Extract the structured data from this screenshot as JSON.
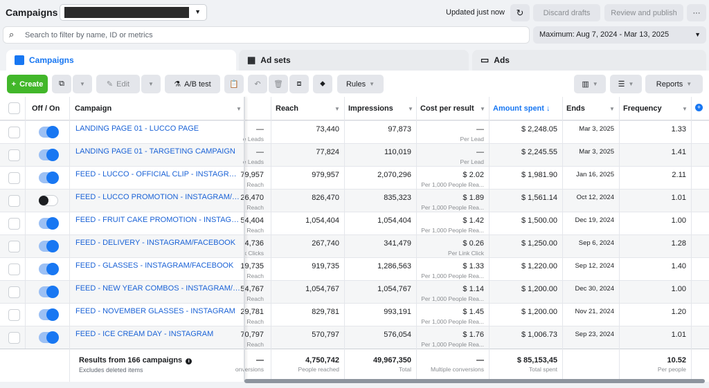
{
  "header": {
    "title": "Campaigns",
    "account_selector": "",
    "updated": "Updated just now",
    "discard": "Discard drafts",
    "review": "Review and publish",
    "more": "···"
  },
  "search": {
    "placeholder": "Search to filter by name, ID or metrics"
  },
  "date_range": "Maximum: Aug 7, 2024 - Mar 13, 2025",
  "tabs": [
    {
      "label": "Campaigns"
    },
    {
      "label": "Ad sets"
    },
    {
      "label": "Ads"
    }
  ],
  "toolbar": {
    "create": "Create",
    "edit": "Edit",
    "ab_test": "A/B test",
    "rules": "Rules",
    "reports": "Reports"
  },
  "columns": {
    "offon": "Off / On",
    "campaign": "Campaign",
    "reach": "Reach",
    "impressions": "Impressions",
    "cost": "Cost per result",
    "amount": "Amount spent",
    "ends": "Ends",
    "frequency": "Frequency"
  },
  "rows": [
    {
      "on": true,
      "name": "LANDING PAGE 01 - LUCCO PAGE",
      "results": "—",
      "results_sub": "e Leads",
      "reach": "73,440",
      "impressions": "97,873",
      "cost": "—",
      "cost_sub": "Per Lead",
      "amount": "$ 2,248.05",
      "ends": "Mar 3, 2025",
      "frequency": "1.33"
    },
    {
      "on": true,
      "name": "LANDING PAGE 01 - TARGETING CAMPAIGN",
      "results": "—",
      "results_sub": "e Leads",
      "reach": "77,824",
      "impressions": "110,019",
      "cost": "—",
      "cost_sub": "Per Lead",
      "amount": "$ 2,245.55",
      "ends": "Mar 3, 2025",
      "frequency": "1.41"
    },
    {
      "on": true,
      "name": "FEED - LUCCO - OFFICIAL CLIP - INSTAGRAM",
      "results": "79,957",
      "results_sub": "Reach",
      "reach": "979,957",
      "impressions": "2,070,296",
      "cost": "$ 2.02",
      "cost_sub": "Per 1,000 People Rea...",
      "amount": "$ 1,981.90",
      "ends": "Jan 16, 2025",
      "frequency": "2.11"
    },
    {
      "on": false,
      "name": "FEED - LUCCO PROMOTION - INSTAGRAM/FACE...",
      "results": "26,470",
      "results_sub": "Reach",
      "reach": "826,470",
      "impressions": "835,323",
      "cost": "$ 1.89",
      "cost_sub": "Per 1,000 People Rea...",
      "amount": "$ 1,561.14",
      "ends": "Oct 12, 2024",
      "frequency": "1.01"
    },
    {
      "on": true,
      "name": "FEED - FRUIT CAKE PROMOTION - INSTAGRAM/F...",
      "results": "54,404",
      "results_sub": "Reach",
      "reach": "1,054,404",
      "impressions": "1,054,404",
      "cost": "$ 1.42",
      "cost_sub": "Per 1,000 People Rea...",
      "amount": "$ 1,500.00",
      "ends": "Dec 19, 2024",
      "frequency": "1.00"
    },
    {
      "on": true,
      "name": "FEED - DELIVERY - INSTAGRAM/FACEBOOK",
      "results": "4,736",
      "results_sub": "k Clicks",
      "reach": "267,740",
      "impressions": "341,479",
      "cost": "$ 0.26",
      "cost_sub": "Per Link Click",
      "amount": "$ 1,250.00",
      "ends": "Sep 6, 2024",
      "frequency": "1.28"
    },
    {
      "on": true,
      "name": "FEED - GLASSES - INSTAGRAM/FACEBOOK",
      "results": "19,735",
      "results_sub": "Reach",
      "reach": "919,735",
      "impressions": "1,286,563",
      "cost": "$ 1.33",
      "cost_sub": "Per 1,000 People Rea...",
      "amount": "$ 1,220.00",
      "ends": "Sep 12, 2024",
      "frequency": "1.40"
    },
    {
      "on": true,
      "name": "FEED - NEW YEAR COMBOS - INSTAGRAM/FACE...",
      "results": "54,767",
      "results_sub": "Reach",
      "reach": "1,054,767",
      "impressions": "1,054,767",
      "cost": "$ 1.14",
      "cost_sub": "Per 1,000 People Rea...",
      "amount": "$ 1,200.00",
      "ends": "Dec 30, 2024",
      "frequency": "1.00"
    },
    {
      "on": true,
      "name": "FEED - NOVEMBER GLASSES - INSTAGRAM",
      "results": "29,781",
      "results_sub": "Reach",
      "reach": "829,781",
      "impressions": "993,191",
      "cost": "$ 1.45",
      "cost_sub": "Per 1,000 People Rea...",
      "amount": "$ 1,200.00",
      "ends": "Nov 21, 2024",
      "frequency": "1.20"
    },
    {
      "on": true,
      "name": "FEED - ICE CREAM DAY - INSTAGRAM",
      "results": "70,797",
      "results_sub": "Reach",
      "reach": "570,797",
      "impressions": "576,054",
      "cost": "$ 1.76",
      "cost_sub": "Per 1,000 People Rea...",
      "amount": "$ 1,006.73",
      "ends": "Sep 23, 2024",
      "frequency": "1.01"
    }
  ],
  "totals": {
    "label": "Results from 166 campaigns",
    "sub": "Excludes deleted items",
    "results": "—",
    "results_sub": "onversions",
    "reach": "4,750,742",
    "reach_sub": "People reached",
    "impressions": "49,967,350",
    "impressions_sub": "Total",
    "cost": "—",
    "cost_sub": "Multiple conversions",
    "amount": "$ 85,153,45",
    "amount_sub": "Total spent",
    "frequency": "10.52",
    "frequency_sub": "Per people"
  },
  "colors": {
    "accent": "#1877f2",
    "create": "#42b72a",
    "link": "#1a62d6"
  }
}
